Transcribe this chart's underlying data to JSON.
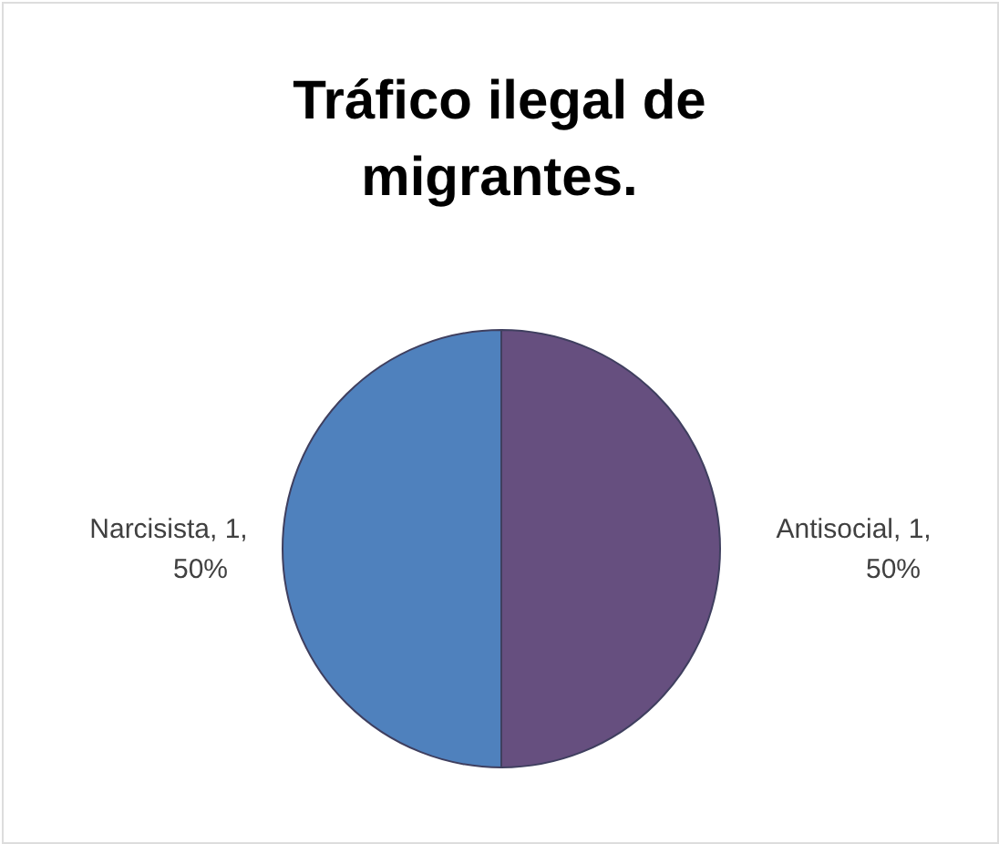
{
  "chart_data": {
    "type": "pie",
    "title": "Tráfico ilegal de migrantes.",
    "categories": [
      "Antisocial",
      "Narcisista"
    ],
    "values": [
      1,
      1
    ],
    "colors": [
      "#664f7f",
      "#4f81bd"
    ],
    "value_labels": [
      ", 1, 50%",
      ", 1, 50%"
    ],
    "legend": false
  }
}
